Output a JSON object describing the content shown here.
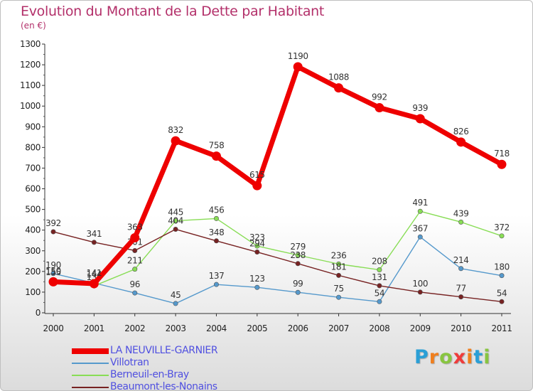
{
  "chart_data": {
    "type": "line",
    "title": "Evolution du Montant de la Dette par Habitant",
    "unit": "(en €)",
    "x": [
      "2000",
      "2001",
      "2002",
      "2003",
      "2004",
      "2005",
      "2006",
      "2007",
      "2008",
      "2009",
      "2010",
      "2011"
    ],
    "y_ticks": [
      "0",
      "100",
      "200",
      "300",
      "400",
      "500",
      "600",
      "700",
      "800",
      "900",
      "1000",
      "1100",
      "1200",
      "1300"
    ],
    "ylim": [
      0,
      1300
    ],
    "grid": false,
    "legend_position": "bottom-left",
    "series": [
      {
        "name": "LA NEUVILLE-GARNIER",
        "color": "#ee0000",
        "values": [
          150,
          141,
          363,
          832,
          758,
          615,
          1190,
          1088,
          992,
          939,
          826,
          718
        ]
      },
      {
        "name": "Villotran",
        "color": "#5599cc",
        "values": [
          190,
          144,
          96,
          45,
          137,
          123,
          99,
          75,
          54,
          367,
          214,
          180
        ]
      },
      {
        "name": "Berneuil-en-Bray",
        "color": "#88dd55",
        "values": [
          155,
          130,
          211,
          445,
          456,
          323,
          279,
          236,
          208,
          491,
          439,
          372
        ]
      },
      {
        "name": "Beaumont-les-Nonains",
        "color": "#772222",
        "values": [
          392,
          341,
          301,
          404,
          348,
          294,
          238,
          181,
          131,
          100,
          77,
          54
        ]
      }
    ]
  },
  "logo": {
    "letters": [
      "P",
      "r",
      "o",
      "x",
      "i",
      "t",
      "i"
    ],
    "colors": [
      "#2a9fd6",
      "#f07f1e",
      "#88c540",
      "#ef3b3b",
      "#f07f1e",
      "#2a9fd6",
      "#88c540"
    ]
  }
}
